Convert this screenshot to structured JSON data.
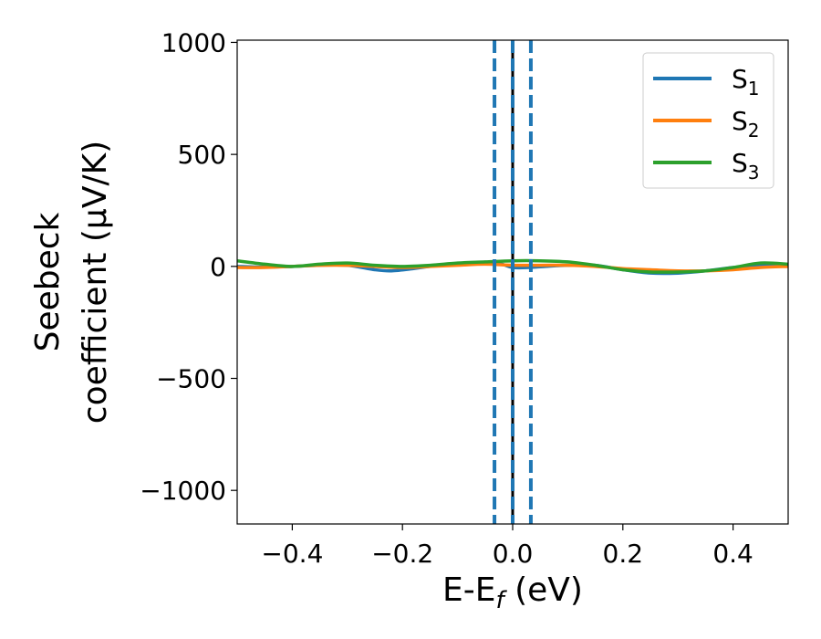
{
  "chart_data": {
    "type": "line",
    "xlabel": {
      "main": "E-E",
      "sub": "f",
      "unit": " (eV)"
    },
    "ylabel": {
      "line1": "Seebeck",
      "line2": "coefficient  (μV/K)"
    },
    "xlim": [
      -0.5,
      0.5
    ],
    "ylim": [
      -1150,
      1010
    ],
    "xticks": [
      -0.4,
      -0.2,
      0.0,
      0.2,
      0.4
    ],
    "xtick_labels": [
      "−0.4",
      "−0.2",
      "0.0",
      "0.2",
      "0.4"
    ],
    "yticks": [
      -1000,
      -500,
      0,
      500,
      1000
    ],
    "ytick_labels": [
      "−1000",
      "−500",
      "0",
      "500",
      "1000"
    ],
    "grid": false,
    "legend_position": "top-right",
    "series": [
      {
        "name": "S",
        "sub": "1",
        "color": "#1f77b4",
        "x": [
          -0.5,
          -0.45,
          -0.4,
          -0.35,
          -0.3,
          -0.25,
          -0.22,
          -0.18,
          -0.15,
          -0.1,
          -0.05,
          -0.02,
          0.0,
          0.03,
          0.06,
          0.1,
          0.15,
          0.2,
          0.25,
          0.3,
          0.35,
          0.4,
          0.45,
          0.5
        ],
        "y": [
          0,
          -3,
          0,
          5,
          5,
          -15,
          -20,
          -10,
          0,
          10,
          15,
          10,
          -5,
          -5,
          0,
          5,
          5,
          -15,
          -30,
          -30,
          -20,
          -5,
          5,
          5
        ]
      },
      {
        "name": "S",
        "sub": "2",
        "color": "#ff7f0e",
        "x": [
          -0.5,
          -0.45,
          -0.4,
          -0.35,
          -0.3,
          -0.25,
          -0.2,
          -0.15,
          -0.1,
          -0.05,
          0.0,
          0.05,
          0.1,
          0.15,
          0.2,
          0.25,
          0.3,
          0.35,
          0.4,
          0.45,
          0.5
        ],
        "y": [
          -5,
          -5,
          0,
          5,
          5,
          0,
          -5,
          0,
          5,
          10,
          5,
          5,
          5,
          0,
          -10,
          -15,
          -20,
          -20,
          -15,
          -5,
          0
        ]
      },
      {
        "name": "S",
        "sub": "3",
        "color": "#2ca02c",
        "x": [
          -0.5,
          -0.45,
          -0.4,
          -0.35,
          -0.3,
          -0.25,
          -0.2,
          -0.15,
          -0.1,
          -0.05,
          0.0,
          0.05,
          0.1,
          0.15,
          0.2,
          0.25,
          0.3,
          0.35,
          0.4,
          0.45,
          0.5
        ],
        "y": [
          25,
          10,
          0,
          10,
          15,
          5,
          0,
          5,
          15,
          20,
          25,
          25,
          20,
          5,
          -15,
          -25,
          -25,
          -20,
          -5,
          15,
          10
        ]
      }
    ],
    "vlines": [
      {
        "x": -0.033,
        "color": "#1f77b4",
        "style": "dashed"
      },
      {
        "x": 0.0,
        "color": "#000000",
        "style": "solid"
      },
      {
        "x": 0.0,
        "color": "#1f77b4",
        "style": "dashed"
      },
      {
        "x": 0.033,
        "color": "#1f77b4",
        "style": "dashed"
      }
    ]
  }
}
